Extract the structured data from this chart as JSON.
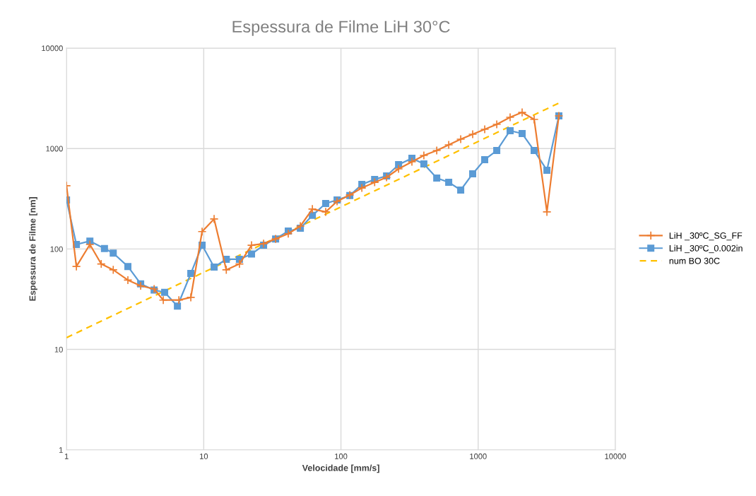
{
  "chart_data": {
    "type": "line",
    "title": "Espessura de Filme LiH 30°C",
    "xlabel": "Velocidade [mm/s]",
    "ylabel": "Espessura de Filme [nm]",
    "log": "xy",
    "xlim": [
      1,
      10000
    ],
    "ylim": [
      1,
      10000
    ],
    "xticks": [
      1,
      10,
      100,
      1000,
      10000
    ],
    "yticks": [
      1,
      10,
      100,
      1000,
      10000
    ],
    "grid": true,
    "legend": "right",
    "series": [
      {
        "name": "LiH _30ºC_SG_FF",
        "color": "#ed7d31",
        "marker": "cross",
        "line_style": "solid",
        "x": [
          1,
          1.18,
          1.48,
          1.79,
          2.19,
          2.8,
          3.47,
          4.35,
          5.07,
          6.59,
          8.05,
          9.73,
          11.9,
          14.6,
          18.2,
          22.3,
          27.3,
          33.4,
          41.3,
          50.6,
          61.9,
          77.4,
          93.7,
          116,
          142,
          176,
          215,
          263,
          329,
          402,
          499,
          610,
          746,
          912,
          1116,
          1366,
          1709,
          2091,
          2559,
          3170,
          3873
        ],
        "values": [
          426,
          67,
          111,
          71,
          62,
          49,
          43,
          40,
          31,
          31,
          33,
          149,
          199,
          62,
          71,
          109,
          113,
          126,
          142,
          169,
          250,
          234,
          298,
          345,
          405,
          461,
          517,
          628,
          738,
          854,
          956,
          1089,
          1239,
          1388,
          1554,
          1741,
          2047,
          2291,
          1950,
          234,
          2115
        ]
      },
      {
        "name": "LiH _30ºC_0.002in",
        "color": "#5b9bd5",
        "marker": "square",
        "line_style": "solid",
        "x": [
          1,
          1.18,
          1.48,
          1.89,
          2.19,
          2.8,
          3.47,
          4.35,
          5.19,
          6.43,
          8.05,
          9.73,
          11.9,
          14.6,
          18.2,
          22.3,
          27.3,
          33.4,
          41.3,
          50.6,
          61.9,
          77.4,
          93.7,
          116,
          142,
          176,
          215,
          263,
          329,
          402,
          499,
          610,
          746,
          912,
          1116,
          1366,
          1709,
          2091,
          2559,
          3170,
          3873
        ],
        "values": [
          308,
          111,
          120,
          101,
          91,
          67,
          45,
          39,
          37,
          27,
          57,
          109,
          66,
          79,
          79,
          89,
          109,
          126,
          151,
          161,
          216,
          284,
          308,
          340,
          440,
          493,
          534,
          692,
          800,
          703,
          509,
          462,
          386,
          561,
          775,
          956,
          1506,
          1410,
          956,
          608,
          2115
        ]
      },
      {
        "name": "num BO 30C",
        "color": "#ffc000",
        "marker": "none",
        "line_style": "dashed",
        "x": [
          1,
          3900
        ],
        "values": [
          13.1,
          2850
        ]
      }
    ]
  }
}
